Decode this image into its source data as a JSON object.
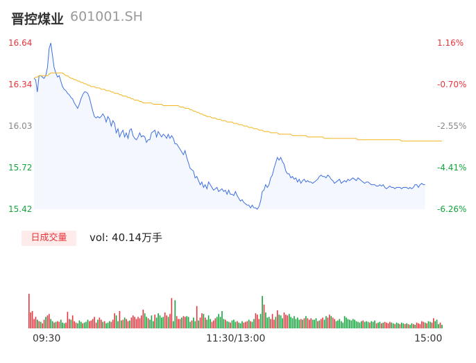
{
  "header": {
    "name": "晋控煤业",
    "code": "601001.SH"
  },
  "colors": {
    "up": "#e8343b",
    "down": "#13a43c",
    "price": "#3d6fe0",
    "avg": "#f1b41c",
    "flat": "#888888"
  },
  "volume_panel": {
    "chip_label": "日成交量",
    "vol_text": "vol: 40.14万手"
  },
  "chart_data": [
    {
      "type": "line",
      "title": "",
      "y_ticks": [
        "16.64",
        "16.34",
        "16.03",
        "15.72",
        "15.42"
      ],
      "y2_ticks": [
        "1.16%",
        "-0.70%",
        "-2.55%",
        "-4.41%",
        "-6.26%"
      ],
      "ylim": [
        15.42,
        16.64
      ],
      "x_ticks": [
        "09:30",
        "11:30/13:00",
        "15:00"
      ],
      "sessions": 242,
      "series": [
        {
          "role": "price",
          "values": [
            16.38,
            16.37,
            16.28,
            16.4,
            16.4,
            16.39,
            16.38,
            16.4,
            16.46,
            16.6,
            16.64,
            16.55,
            16.46,
            16.42,
            16.39,
            16.4,
            16.36,
            16.32,
            16.3,
            16.29,
            16.27,
            16.26,
            16.24,
            16.23,
            16.2,
            16.18,
            16.16,
            16.19,
            16.23,
            16.26,
            16.28,
            16.28,
            16.27,
            16.24,
            16.19,
            16.14,
            16.1,
            16.09,
            16.1,
            16.09,
            16.1,
            16.12,
            16.1,
            16.06,
            16.1,
            16.08,
            16.03,
            16.07,
            16.05,
            15.98,
            16.01,
            15.95,
            15.98,
            16.0,
            15.95,
            15.98,
            15.94,
            16.0,
            16.01,
            15.96,
            15.94,
            15.93,
            15.95,
            15.98,
            15.95,
            15.96,
            15.95,
            15.91,
            15.93,
            15.93,
            15.98,
            15.99,
            16.0,
            15.95,
            15.99,
            15.97,
            15.95,
            15.97,
            15.96,
            15.94,
            15.97,
            15.94,
            15.96,
            15.94,
            15.9,
            15.9,
            15.88,
            15.86,
            15.84,
            15.82,
            15.85,
            15.8,
            15.76,
            15.72,
            15.71,
            15.7,
            15.65,
            15.66,
            15.63,
            15.6,
            15.62,
            15.58,
            15.6,
            15.57,
            15.62,
            15.6,
            15.58,
            15.56,
            15.57,
            15.58,
            15.55,
            15.56,
            15.57,
            15.55,
            15.56,
            15.53,
            15.56,
            15.53,
            15.53,
            15.52,
            15.55,
            15.52,
            15.5,
            15.48,
            15.49,
            15.47,
            15.46,
            15.45,
            15.45,
            15.43,
            15.45,
            15.43,
            15.43,
            15.42,
            15.44,
            15.48,
            15.55,
            15.56,
            15.6,
            15.58,
            15.6,
            15.65,
            15.67,
            15.72,
            15.76,
            15.8,
            15.78,
            15.8,
            15.77,
            15.75,
            15.7,
            15.68,
            15.68,
            15.65,
            15.66,
            15.64,
            15.65,
            15.62,
            15.64,
            15.61,
            15.63,
            15.64,
            15.62,
            15.63,
            15.62,
            15.62,
            15.61,
            15.62,
            15.63,
            15.64,
            15.66,
            15.67,
            15.66,
            15.66,
            15.65,
            15.67,
            15.66,
            15.64,
            15.63,
            15.61,
            15.62,
            15.63,
            15.64,
            15.61,
            15.62,
            15.63,
            15.62,
            15.64,
            15.63,
            15.64,
            15.65,
            15.64,
            15.63,
            15.65,
            15.64,
            15.63,
            15.62,
            15.61,
            15.62,
            15.62,
            15.61,
            15.6,
            15.6,
            15.6,
            15.59,
            15.59,
            15.6,
            15.59,
            15.6,
            15.58,
            15.57,
            15.58,
            15.59,
            15.58,
            15.58,
            15.57,
            15.58,
            15.58,
            15.58,
            15.57,
            15.58,
            15.58,
            15.58,
            15.57,
            15.58,
            15.57,
            15.58,
            15.6,
            15.6,
            15.58,
            15.6,
            15.61,
            15.6,
            15.6
          ]
        },
        {
          "role": "avg",
          "values": [
            16.38,
            16.39,
            16.39,
            16.4,
            16.4,
            16.4,
            16.4,
            16.4,
            16.4,
            16.41,
            16.42,
            16.42,
            16.42,
            16.42,
            16.42,
            16.42,
            16.42,
            16.42,
            16.41,
            16.4,
            16.4,
            16.39,
            16.38,
            16.38,
            16.37,
            16.37,
            16.36,
            16.36,
            16.35,
            16.35,
            16.34,
            16.34,
            16.33,
            16.33,
            16.32,
            16.32,
            16.32,
            16.31,
            16.31,
            16.31,
            16.3,
            16.3,
            16.3,
            16.29,
            16.29,
            16.29,
            16.28,
            16.28,
            16.27,
            16.27,
            16.27,
            16.26,
            16.26,
            16.25,
            16.25,
            16.25,
            16.24,
            16.24,
            16.23,
            16.23,
            16.22,
            16.22,
            16.22,
            16.21,
            16.21,
            16.2,
            16.2,
            16.2,
            16.2,
            16.2,
            16.2,
            16.19,
            16.19,
            16.19,
            16.19,
            16.19,
            16.19,
            16.18,
            16.18,
            16.18,
            16.18,
            16.18,
            16.18,
            16.18,
            16.18,
            16.18,
            16.18,
            16.17,
            16.17,
            16.17,
            16.16,
            16.16,
            16.16,
            16.15,
            16.15,
            16.14,
            16.14,
            16.13,
            16.13,
            16.12,
            16.12,
            16.11,
            16.11,
            16.1,
            16.1,
            16.1,
            16.09,
            16.09,
            16.09,
            16.08,
            16.08,
            16.08,
            16.07,
            16.07,
            16.07,
            16.06,
            16.06,
            16.06,
            16.06,
            16.05,
            16.05,
            16.05,
            16.04,
            16.04,
            16.04,
            16.03,
            16.03,
            16.03,
            16.02,
            16.02,
            16.02,
            16.01,
            16.01,
            16.01,
            16.0,
            16.0,
            16.0,
            15.99,
            15.99,
            15.99,
            15.99,
            15.98,
            15.98,
            15.98,
            15.98,
            15.98,
            15.97,
            15.97,
            15.97,
            15.97,
            15.97,
            15.97,
            15.97,
            15.97,
            15.96,
            15.96,
            15.96,
            15.96,
            15.96,
            15.96,
            15.96,
            15.96,
            15.96,
            15.95,
            15.95,
            15.95,
            15.95,
            15.95,
            15.95,
            15.95,
            15.95,
            15.95,
            15.95,
            15.94,
            15.94,
            15.94,
            15.94,
            15.94,
            15.94,
            15.94,
            15.94,
            15.94,
            15.94,
            15.94,
            15.94,
            15.94,
            15.94,
            15.94,
            15.94,
            15.94,
            15.94,
            15.94,
            15.94,
            15.93,
            15.93,
            15.93,
            15.93,
            15.93,
            15.93,
            15.93,
            15.93,
            15.93,
            15.93,
            15.93,
            15.93,
            15.93,
            15.93,
            15.93,
            15.93,
            15.93,
            15.93,
            15.93,
            15.93,
            15.93,
            15.93,
            15.93,
            15.93,
            15.93,
            15.93,
            15.92,
            15.92,
            15.92,
            15.92,
            15.92,
            15.92,
            15.92,
            15.92,
            15.92,
            15.92,
            15.92,
            15.92,
            15.92,
            15.92,
            15.92,
            15.92,
            15.92,
            15.92,
            15.92,
            15.92,
            15.92,
            15.92,
            15.92,
            15.92,
            15.92
          ]
        }
      ]
    },
    {
      "type": "bar",
      "title": "",
      "ylim": [
        0,
        1
      ],
      "values": [
        0.48,
        0.22,
        0.24,
        0.13,
        0.16,
        0.12,
        0.1,
        0.09,
        0.07,
        0.12,
        0.16,
        0.18,
        0.2,
        0.13,
        0.1,
        0.08,
        0.09,
        0.1,
        0.09,
        0.12,
        0.08,
        0.07,
        0.08,
        0.23,
        0.13,
        0.12,
        0.18,
        0.1,
        0.08,
        0.07,
        0.11,
        0.09,
        0.07,
        0.08,
        0.09,
        0.12,
        0.1,
        0.11,
        0.13,
        0.16,
        0.08,
        0.12,
        0.15,
        0.12,
        0.09,
        0.1,
        0.07,
        0.08,
        0.1,
        0.09,
        0.12,
        0.21,
        0.18,
        0.1,
        0.24,
        0.11,
        0.12,
        0.15,
        0.13,
        0.1,
        0.11,
        0.15,
        0.18,
        0.16,
        0.13,
        0.16,
        0.14,
        0.18,
        0.26,
        0.21,
        0.16,
        0.14,
        0.12,
        0.18,
        0.1,
        0.19,
        0.15,
        0.21,
        0.18,
        0.15,
        0.16,
        0.22,
        0.18,
        0.16,
        0.2,
        0.42,
        0.1,
        0.39,
        0.17,
        0.13,
        0.13,
        0.15,
        0.17,
        0.16,
        0.17,
        0.16,
        0.09,
        0.11,
        0.15,
        0.1,
        0.31,
        0.11,
        0.15,
        0.21,
        0.2,
        0.15,
        0.12,
        0.18,
        0.13,
        0.09,
        0.11,
        0.14,
        0.16,
        0.2,
        0.16,
        0.24,
        0.13,
        0.12,
        0.1,
        0.09,
        0.08,
        0.11,
        0.12,
        0.09,
        0.1,
        0.08,
        0.07,
        0.1,
        0.08,
        0.09,
        0.1,
        0.12,
        0.1,
        0.09,
        0.13,
        0.21,
        0.19,
        0.13,
        0.2,
        0.45,
        0.33,
        0.22,
        0.15,
        0.16,
        0.13,
        0.2,
        0.12,
        0.16,
        0.25,
        0.19,
        0.18,
        0.14,
        0.22,
        0.19,
        0.18,
        0.2,
        0.16,
        0.14,
        0.17,
        0.13,
        0.15,
        0.12,
        0.13,
        0.12,
        0.14,
        0.17,
        0.14,
        0.12,
        0.14,
        0.12,
        0.12,
        0.14,
        0.1,
        0.11,
        0.13,
        0.15,
        0.12,
        0.17,
        0.15,
        0.19,
        0.17,
        0.15,
        0.13,
        0.1,
        0.11,
        0.13,
        0.1,
        0.08,
        0.17,
        0.15,
        0.13,
        0.12,
        0.11,
        0.13,
        0.12,
        0.1,
        0.09,
        0.08,
        0.1,
        0.11,
        0.09,
        0.1,
        0.09,
        0.08,
        0.1,
        0.09,
        0.11,
        0.07,
        0.08,
        0.09,
        0.07,
        0.08,
        0.09,
        0.08,
        0.07,
        0.09,
        0.08,
        0.07,
        0.06,
        0.08,
        0.07,
        0.06,
        0.08,
        0.07,
        0.06,
        0.07,
        0.06,
        0.05,
        0.07,
        0.06,
        0.05,
        0.08,
        0.07,
        0.06,
        0.1,
        0.09,
        0.08,
        0.07,
        0.1,
        0.09,
        0.08,
        0.14,
        0.1,
        0.12,
        0.06,
        0.08,
        0.05
      ],
      "colors": "rrrrrgrgrrgrrggrgrrgggrrrgrrrgggrgggrrrrrgrrgrgggrrrggrgrgrrgrrrrrrrrggrgggrgggggrrgrrggrrrgrrgggrggrgrrgrgggrrrgggggrggrgggrgggrrrgrggrrrggrgggrrrgrgggrrrgggggggrgrgrrrgggrgrrggrrgrrggggggggggggggggrgggrgggrggrgrrrrggrggrggrgrggrgrrrrrgrggrrgggrgggrg"
    }
  ]
}
